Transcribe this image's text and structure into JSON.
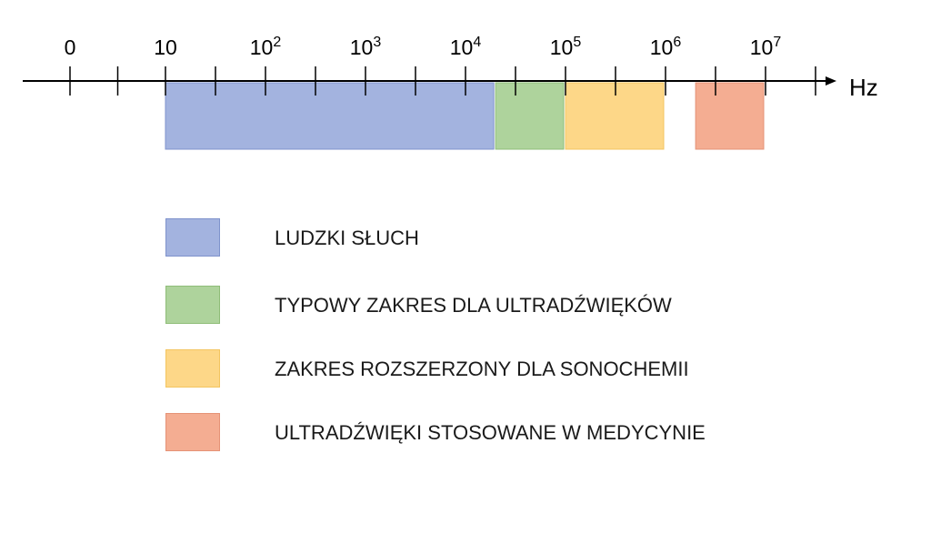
{
  "axis": {
    "unit": "Hz",
    "scale": "log",
    "tick_labels": [
      {
        "base": "0",
        "exp": ""
      },
      {
        "base": "10",
        "exp": ""
      },
      {
        "base": "10",
        "exp": "2"
      },
      {
        "base": "10",
        "exp": "3"
      },
      {
        "base": "10",
        "exp": "4"
      },
      {
        "base": "10",
        "exp": "5"
      },
      {
        "base": "10",
        "exp": "6"
      },
      {
        "base": "10",
        "exp": "7"
      }
    ]
  },
  "ranges": [
    {
      "key": "human",
      "label": "LUDZKI SŁUCH",
      "from_hz": 10,
      "to_hz": 20000,
      "color": "#a3b3df",
      "border": "#7f93cc"
    },
    {
      "key": "ultrasound",
      "label": "TYPOWY ZAKRES DLA ULTRADŹWIĘKÓW",
      "from_hz": 20000,
      "to_hz": 100000,
      "color": "#aed39c",
      "border": "#8fbd78"
    },
    {
      "key": "sonochemistry",
      "label": "ZAKRES ROZSZERZONY DLA SONOCHEMII",
      "from_hz": 100000,
      "to_hz": 1000000,
      "color": "#fdd788",
      "border": "#f3c560"
    },
    {
      "key": "medical",
      "label": "ULTRADŹWIĘKI STOSOWANE W MEDYCYNIE",
      "from_hz": 2000000,
      "to_hz": 10000000,
      "color": "#f4ad92",
      "border": "#e59377"
    }
  ]
}
